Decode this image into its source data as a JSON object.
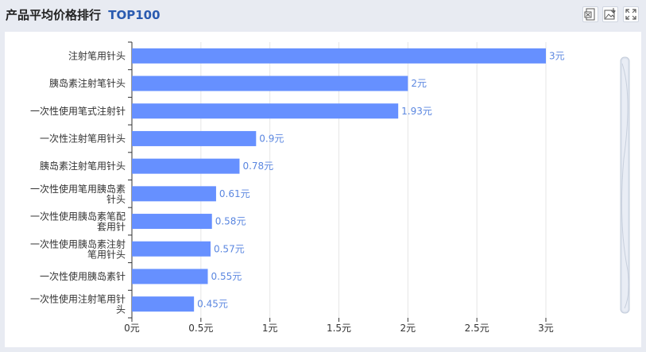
{
  "header": {
    "title": "产品平均价格排行",
    "tag": "TOP100",
    "icons": [
      "excel-export-icon",
      "image-export-icon",
      "fullscreen-icon"
    ]
  },
  "colors": {
    "bar": "#6690ff",
    "label": "#5b87e0",
    "axis": "#333333",
    "grid": "#e6e6e6",
    "tag": "#2a5bb0"
  },
  "chart_data": {
    "type": "bar",
    "orientation": "horizontal",
    "categories": [
      [
        "注射笔用针头"
      ],
      [
        "胰岛素注射笔针头"
      ],
      [
        "一次性使用笔式注射针"
      ],
      [
        "一次性注射笔用针头"
      ],
      [
        "胰岛素注射笔用针头"
      ],
      [
        "一次性使用笔用胰岛素",
        "针头"
      ],
      [
        "一次性使用胰岛素笔配",
        "套用针"
      ],
      [
        "一次性使用胰岛素注射",
        "笔用针头"
      ],
      [
        "一次性使用胰岛素针"
      ],
      [
        "一次性使用注射笔用针",
        "头"
      ]
    ],
    "values": [
      3,
      2,
      1.93,
      0.9,
      0.78,
      0.61,
      0.58,
      0.57,
      0.55,
      0.45
    ],
    "value_labels": [
      "3元",
      "2元",
      "1.93元",
      "0.9元",
      "0.78元",
      "0.61元",
      "0.58元",
      "0.57元",
      "0.55元",
      "0.45元"
    ],
    "xticks": [
      0,
      0.5,
      1,
      1.5,
      2,
      2.5,
      3
    ],
    "xtick_labels": [
      "0元",
      "0.5元",
      "1元",
      "1.5元",
      "2元",
      "2.5元",
      "3元"
    ],
    "xlim": [
      0,
      3
    ],
    "grid": true,
    "unit": "元"
  }
}
